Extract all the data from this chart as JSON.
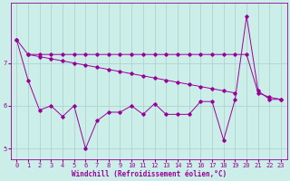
{
  "xlabel": "Windchill (Refroidissement éolien,°C)",
  "background_color": "#cceee8",
  "grid_color": "#aacccc",
  "line_color": "#990099",
  "ylim": [
    4.75,
    8.4
  ],
  "xlim": [
    -0.5,
    23.5
  ],
  "yticks": [
    5,
    6,
    7
  ],
  "xticks": [
    0,
    1,
    2,
    3,
    4,
    5,
    6,
    7,
    8,
    9,
    10,
    11,
    12,
    13,
    14,
    15,
    16,
    17,
    18,
    19,
    20,
    21,
    22,
    23
  ],
  "line1_x": [
    0,
    1,
    2,
    3,
    4,
    5,
    6,
    7,
    8,
    9,
    10,
    11,
    12,
    13,
    14,
    15,
    16,
    17,
    18,
    19
  ],
  "line1_y": [
    7.55,
    7.2,
    7.15,
    7.1,
    7.05,
    7.0,
    6.95,
    6.9,
    6.85,
    6.8,
    6.75,
    6.7,
    6.65,
    6.6,
    6.55,
    6.5,
    6.45,
    6.4,
    6.35,
    6.3
  ],
  "line2_x": [
    1,
    2,
    3,
    4,
    5,
    6,
    7,
    8,
    9,
    10,
    11,
    12,
    13,
    14,
    15,
    16,
    17,
    18,
    19,
    20,
    21,
    22,
    23
  ],
  "line2_y": [
    7.2,
    7.2,
    7.2,
    7.2,
    7.2,
    7.2,
    7.2,
    7.2,
    7.2,
    7.2,
    7.2,
    7.2,
    7.2,
    7.2,
    7.2,
    7.2,
    7.2,
    7.2,
    7.2,
    7.2,
    6.3,
    6.2,
    6.15
  ],
  "line3_x": [
    0,
    1,
    2,
    3,
    4,
    5,
    6,
    7,
    8,
    9,
    10,
    11,
    12,
    13,
    14,
    15,
    16,
    17,
    18,
    19,
    20,
    21,
    22,
    23
  ],
  "line3_y": [
    7.55,
    6.6,
    5.9,
    6.0,
    5.75,
    6.0,
    5.0,
    5.65,
    5.85,
    5.85,
    6.0,
    5.8,
    6.05,
    5.8,
    5.8,
    5.8,
    6.1,
    6.1,
    5.2,
    6.15,
    8.1,
    6.35,
    6.15,
    6.15
  ]
}
